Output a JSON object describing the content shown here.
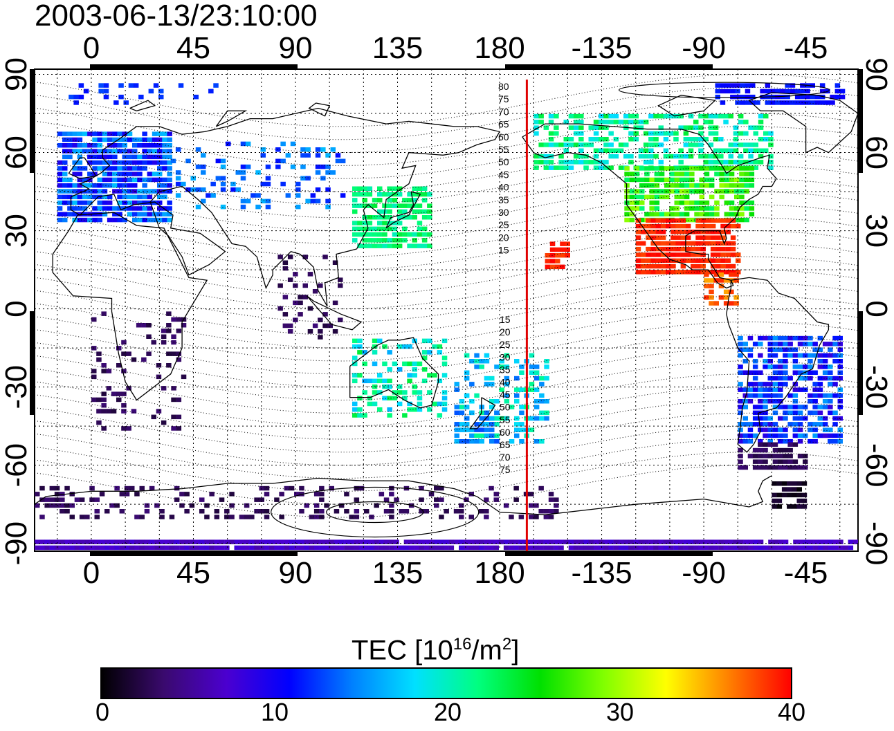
{
  "title": "2003-06-13/23:10:00",
  "map": {
    "lon_ticks_top": [
      "0",
      "45",
      "90",
      "135",
      "180",
      "-135",
      "-90",
      "-45"
    ],
    "lon_ticks_bottom": [
      "0",
      "45",
      "90",
      "135",
      "180",
      "-135",
      "-90",
      "-45"
    ],
    "lon_tick_values": [
      0,
      45,
      90,
      135,
      180,
      225,
      270,
      315
    ],
    "lat_ticks": [
      "90",
      "60",
      "30",
      "0",
      "-30",
      "-60",
      "-90"
    ],
    "lat_tick_values": [
      90,
      60,
      30,
      0,
      -30,
      -60,
      -90
    ],
    "lon_range": [
      -25,
      338
    ],
    "lat_range": [
      -93,
      92
    ],
    "terminator_longitude": 192,
    "terminator_color": "#e00000",
    "contour_labels_north": [
      "80",
      "75",
      "70",
      "65",
      "60",
      "55",
      "50",
      "45",
      "40",
      "35",
      "30",
      "25",
      "20",
      "15"
    ],
    "contour_labels_south": [
      "15",
      "20",
      "25",
      "30",
      "35",
      "40",
      "45",
      "50",
      "55",
      "60",
      "65",
      "70",
      "75"
    ]
  },
  "colorbar": {
    "title_main": "TEC  [10",
    "title_sup1": "16",
    "title_mid": "/m",
    "title_sup2": "2",
    "title_end": "]",
    "tick_labels": [
      "0",
      "10",
      "20",
      "30",
      "40"
    ],
    "min": 0,
    "max": 40,
    "colors": [
      "#000000",
      "#3a0a6e",
      "#4b00d0",
      "#0000ff",
      "#0080ff",
      "#00e0ff",
      "#00ff80",
      "#00e000",
      "#80ff00",
      "#ffff00",
      "#ff8000",
      "#ff0000"
    ]
  }
}
